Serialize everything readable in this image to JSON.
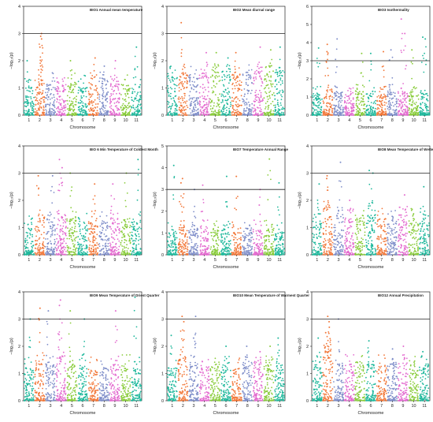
{
  "figure": {
    "colors": [
      "#1fb89c",
      "#f2783a",
      "#7f8ec9",
      "#e36bcf",
      "#8acc3c"
    ],
    "threshold_color": "#222222"
  },
  "chart_data": [
    {
      "type": "scatter",
      "title": "BIO1 Annual mean temperature",
      "xlabel": "Chromosome",
      "ylabel": "−log₁₀(p)",
      "categories": [
        "1",
        "2",
        "3",
        "4",
        "5",
        "6",
        "7",
        "8",
        "9",
        "10",
        "11"
      ],
      "yticks": [
        0,
        1,
        2,
        3,
        4
      ],
      "ylim": [
        0,
        4
      ],
      "threshold": 3,
      "baseline": [
        0.8,
        1.0,
        0.9,
        0.85,
        0.9,
        0.8,
        0.85,
        0.95,
        0.9,
        0.85,
        0.8
      ],
      "peaks": [
        [
          1,
          2.0
        ],
        [
          2,
          3.0
        ],
        [
          2,
          2.9
        ],
        [
          2,
          2.8
        ],
        [
          2,
          2.5
        ],
        [
          5,
          2.0
        ],
        [
          7,
          2.1
        ],
        [
          8,
          1.8
        ],
        [
          9,
          2.0
        ],
        [
          11,
          2.5
        ]
      ]
    },
    {
      "type": "scatter",
      "title": "BIO2 Mean diurnal range",
      "xlabel": "Chromosome",
      "ylabel": "−log₁₀(p)",
      "categories": [
        "1",
        "2",
        "3",
        "4",
        "5",
        "6",
        "7",
        "8",
        "9",
        "10",
        "11"
      ],
      "yticks": [
        0,
        1,
        2,
        3,
        4
      ],
      "ylim": [
        0,
        4
      ],
      "threshold": 3,
      "baseline": [
        1.1,
        1.2,
        1.1,
        1.2,
        1.3,
        1.2,
        1.1,
        1.3,
        1.2,
        1.2,
        1.3
      ],
      "peaks": [
        [
          2,
          3.4
        ],
        [
          4,
          2.3
        ],
        [
          5,
          2.3
        ],
        [
          6,
          2.1
        ],
        [
          7,
          2.3
        ],
        [
          9,
          2.5
        ],
        [
          10,
          2.4
        ],
        [
          11,
          2.5
        ]
      ]
    },
    {
      "type": "scatter",
      "title": "BIO3 Isothermality",
      "xlabel": "Chromosome",
      "ylabel": "−log₁₀(p)",
      "categories": [
        "1",
        "2",
        "3",
        "4",
        "5",
        "6",
        "7",
        "8",
        "9",
        "10",
        "11"
      ],
      "yticks": [
        0,
        1,
        2,
        3,
        4,
        5,
        6
      ],
      "ylim": [
        0,
        6
      ],
      "threshold": 3,
      "baseline": [
        0.9,
        1.0,
        1.0,
        0.9,
        1.0,
        0.9,
        0.9,
        1.0,
        1.1,
        1.0,
        0.9
      ],
      "peaks": [
        [
          1,
          3.7
        ],
        [
          2,
          3.9
        ],
        [
          2,
          3.5
        ],
        [
          3,
          4.2
        ],
        [
          5,
          3.4
        ],
        [
          6,
          3.4
        ],
        [
          7,
          3.5
        ],
        [
          8,
          3.6
        ],
        [
          9,
          5.3
        ],
        [
          9,
          4.5
        ],
        [
          10,
          3.6
        ],
        [
          11,
          4.3
        ],
        [
          11,
          4.2
        ]
      ]
    },
    {
      "type": "scatter",
      "title": "BIO 6 Min Temperature of Coldest Month",
      "xlabel": "Chromosome",
      "ylabel": "−log₁₀(p)",
      "categories": [
        "1",
        "2",
        "3",
        "4",
        "5",
        "6",
        "7",
        "8",
        "9",
        "10",
        "11"
      ],
      "yticks": [
        0,
        1,
        2,
        3,
        4
      ],
      "ylim": [
        0,
        4
      ],
      "threshold": 3,
      "baseline": [
        0.9,
        1.1,
        1.0,
        1.1,
        1.0,
        0.9,
        0.9,
        0.9,
        1.0,
        1.0,
        0.9
      ],
      "peaks": [
        [
          2,
          2.9
        ],
        [
          3,
          2.9
        ],
        [
          4,
          3.5
        ],
        [
          4,
          3.2
        ],
        [
          5,
          3.0
        ],
        [
          7,
          2.6
        ],
        [
          9,
          2.6
        ],
        [
          10,
          3.0
        ],
        [
          11,
          3.5
        ]
      ]
    },
    {
      "type": "scatter",
      "title": "BIO7 Temperature Annual Range",
      "xlabel": "Chromosome",
      "ylabel": "−log₁₀(p)",
      "categories": [
        "1",
        "2",
        "3",
        "4",
        "5",
        "6",
        "7",
        "8",
        "9",
        "10",
        "11"
      ],
      "yticks": [
        0,
        1,
        2,
        3,
        4,
        5
      ],
      "ylim": [
        0,
        5
      ],
      "threshold": 3,
      "baseline": [
        0.8,
        1.0,
        0.9,
        0.9,
        0.9,
        0.9,
        0.8,
        0.9,
        0.9,
        0.9,
        0.8
      ],
      "peaks": [
        [
          1,
          4.1
        ],
        [
          2,
          3.5
        ],
        [
          2,
          3.3
        ],
        [
          3,
          3.0
        ],
        [
          4,
          3.2
        ],
        [
          6,
          3.6
        ],
        [
          7,
          3.6
        ],
        [
          9,
          3.0
        ],
        [
          10,
          4.4
        ],
        [
          11,
          3.3
        ]
      ]
    },
    {
      "type": "scatter",
      "title": "BIO8 Mean Temperature of Wettest Quarter",
      "xlabel": "Chromosome",
      "ylabel": "−log₁₀(p)",
      "categories": [
        "1",
        "2",
        "3",
        "4",
        "5",
        "6",
        "7",
        "8",
        "9",
        "10",
        "11"
      ],
      "yticks": [
        0,
        1,
        2,
        3,
        4
      ],
      "ylim": [
        0,
        4
      ],
      "threshold": 3,
      "baseline": [
        1.0,
        1.3,
        1.1,
        1.0,
        1.1,
        1.1,
        1.0,
        1.0,
        1.1,
        1.0,
        1.0
      ],
      "peaks": [
        [
          1,
          2.6
        ],
        [
          2,
          2.9
        ],
        [
          2,
          2.8
        ],
        [
          3,
          3.4
        ],
        [
          4,
          2.0
        ],
        [
          6,
          3.1
        ],
        [
          6,
          3.0
        ],
        [
          9,
          2.2
        ],
        [
          11,
          2.5
        ]
      ]
    },
    {
      "type": "scatter",
      "title": "BIO9 Mean Temperature of Driest Quarter",
      "xlabel": "Chromosome",
      "ylabel": "−log₁₀(p)",
      "categories": [
        "1",
        "2",
        "3",
        "4",
        "5",
        "6",
        "7",
        "8",
        "9",
        "10",
        "11"
      ],
      "yticks": [
        0,
        1,
        2,
        3,
        4
      ],
      "ylim": [
        0,
        4
      ],
      "threshold": 3,
      "baseline": [
        0.9,
        1.1,
        1.0,
        1.2,
        1.0,
        1.0,
        0.9,
        0.9,
        1.0,
        1.0,
        0.9
      ],
      "peaks": [
        [
          1,
          3.0
        ],
        [
          2,
          3.4
        ],
        [
          3,
          3.3
        ],
        [
          4,
          3.7
        ],
        [
          4,
          3.5
        ],
        [
          5,
          3.3
        ],
        [
          6,
          3.0
        ],
        [
          9,
          3.3
        ],
        [
          11,
          3.8
        ]
      ]
    },
    {
      "type": "scatter",
      "title": "BIO10 Mean Temperature of Warmest Quarter",
      "xlabel": "Chromosome",
      "ylabel": "−log₁₀(p)",
      "categories": [
        "1",
        "2",
        "3",
        "4",
        "5",
        "6",
        "7",
        "8",
        "9",
        "10",
        "11"
      ],
      "yticks": [
        0,
        1,
        2,
        3,
        4
      ],
      "ylim": [
        0,
        4
      ],
      "threshold": 3,
      "baseline": [
        0.9,
        1.2,
        1.0,
        1.0,
        1.0,
        1.0,
        0.9,
        1.1,
        1.1,
        1.0,
        1.0
      ],
      "peaks": [
        [
          1,
          2.4
        ],
        [
          2,
          3.1
        ],
        [
          2,
          2.9
        ],
        [
          3,
          3.1
        ],
        [
          3,
          2.3
        ],
        [
          6,
          2.0
        ],
        [
          8,
          2.0
        ],
        [
          9,
          1.8
        ],
        [
          10,
          2.0
        ],
        [
          11,
          2.3
        ]
      ]
    },
    {
      "type": "scatter",
      "title": "BIO12 Annual Precipitation",
      "xlabel": "Chromosome",
      "ylabel": "−log₁₀(p)",
      "categories": [
        "1",
        "2",
        "3",
        "4",
        "5",
        "6",
        "7",
        "8",
        "9",
        "10",
        "11"
      ],
      "yticks": [
        0,
        1,
        2,
        3,
        4
      ],
      "ylim": [
        0,
        4
      ],
      "threshold": 3,
      "baseline": [
        1.0,
        1.4,
        1.0,
        1.0,
        1.1,
        1.0,
        1.0,
        1.0,
        1.0,
        1.0,
        1.0
      ],
      "peaks": [
        [
          1,
          2.3
        ],
        [
          2,
          3.1
        ],
        [
          2,
          2.9
        ],
        [
          2,
          2.7
        ],
        [
          2,
          2.5
        ],
        [
          3,
          3.0
        ],
        [
          6,
          2.2
        ],
        [
          8,
          1.9
        ],
        [
          9,
          2.0
        ],
        [
          11,
          1.8
        ]
      ]
    }
  ]
}
